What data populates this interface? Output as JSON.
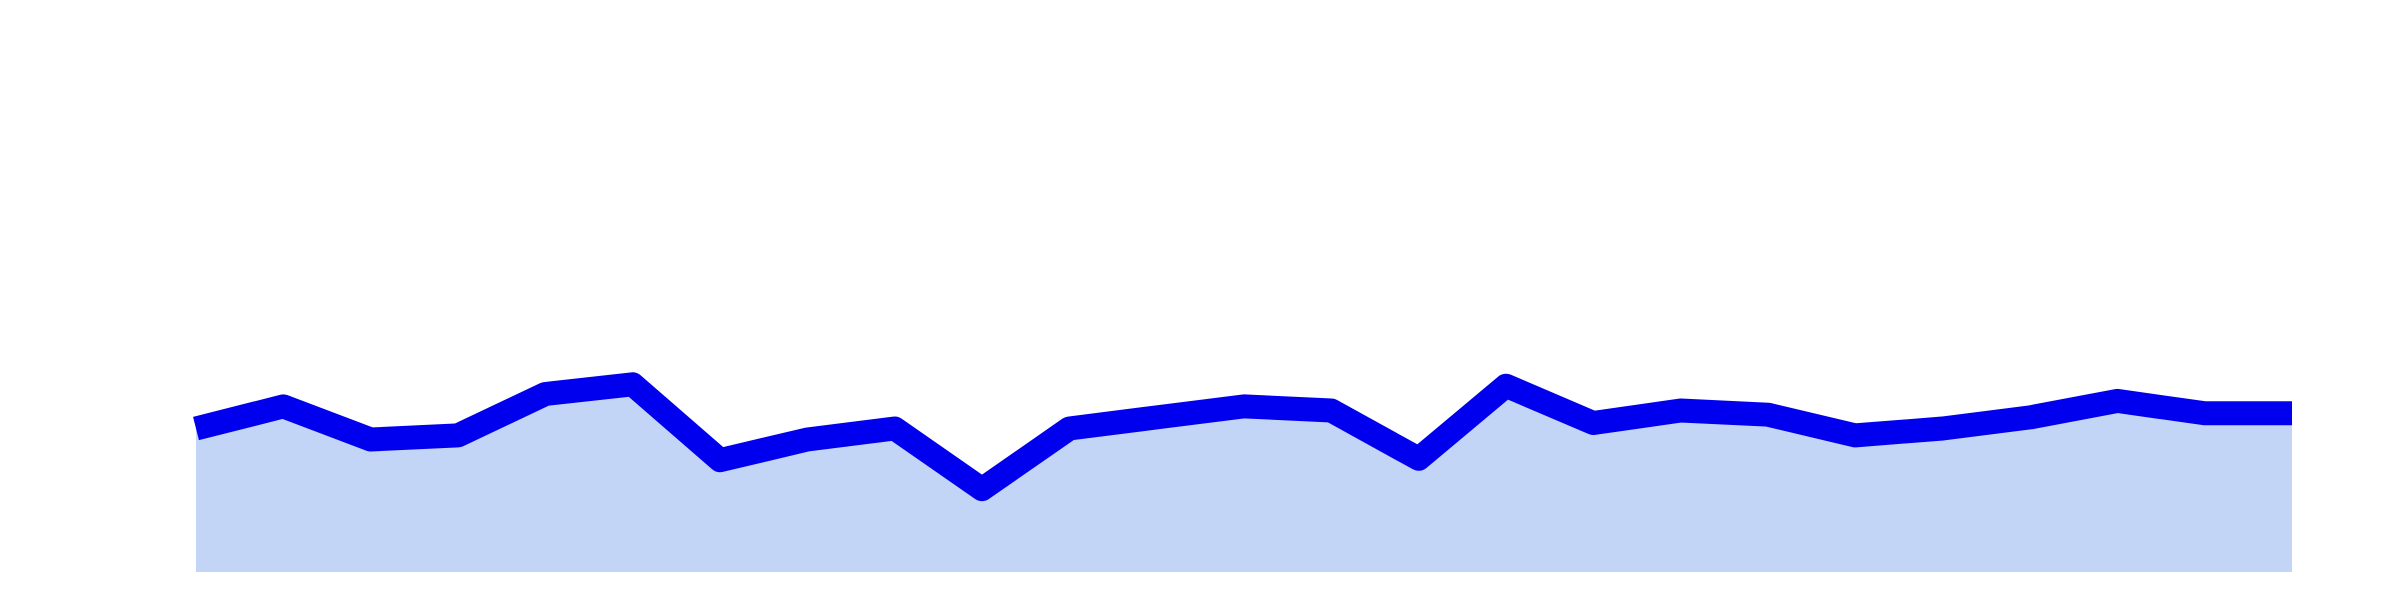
{
  "chart_data": {
    "type": "area",
    "x": [
      0,
      1,
      2,
      3,
      4,
      5,
      6,
      7,
      8,
      9,
      10,
      11,
      12,
      13,
      14,
      15,
      16,
      17,
      18,
      19,
      20,
      21,
      22,
      23,
      24
    ],
    "series": [
      {
        "values": [
          52,
          60,
          48,
          49.5,
          64.5,
          68,
          40.5,
          48,
          52,
          30,
          52,
          56,
          60,
          58.5,
          41,
          67.5,
          54,
          58.5,
          57,
          49.5,
          52,
          56,
          62,
          57.5,
          57.5
        ]
      }
    ],
    "ylim": [
      0,
      200
    ],
    "colors": {
      "line": "#0000ee",
      "fill": "#c2d5f6"
    },
    "grid": false,
    "legend": "none"
  }
}
